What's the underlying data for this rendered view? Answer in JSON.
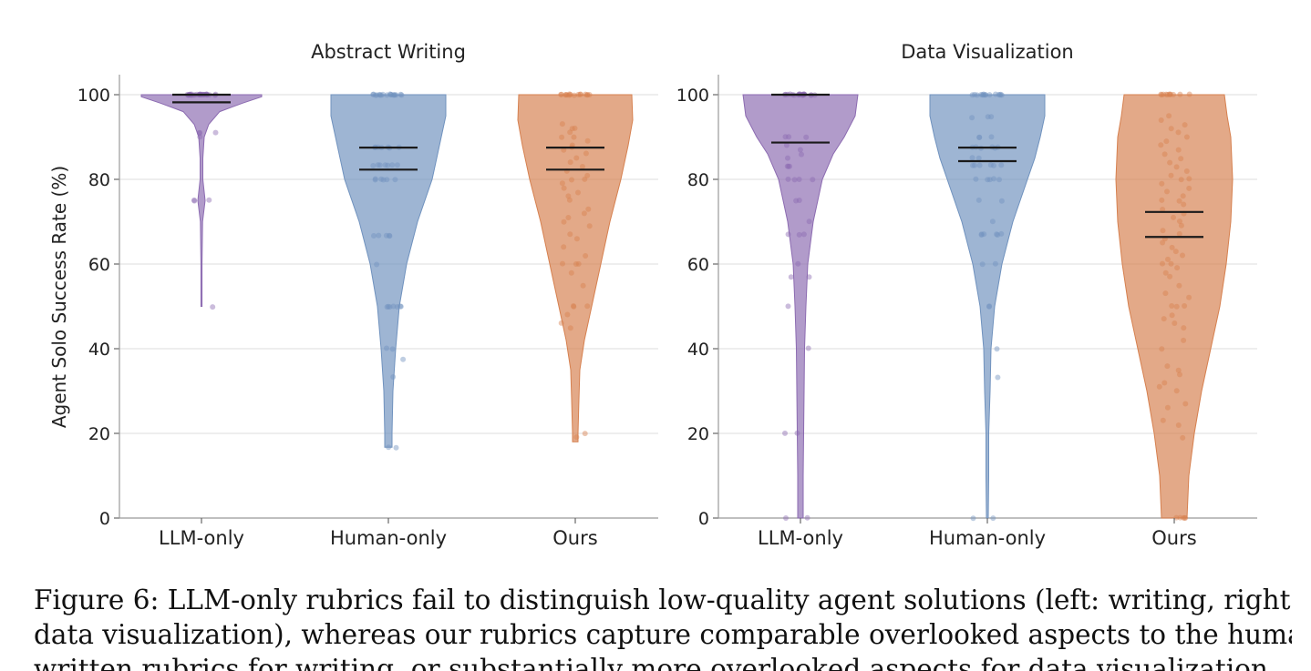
{
  "chart_data": [
    {
      "type": "violin",
      "title": "Abstract Writing",
      "ylabel": "Agent Solo Success Rate (%)",
      "xlabel": "",
      "ylim": [
        0,
        105
      ],
      "yticks": [
        0,
        20,
        40,
        60,
        80,
        100
      ],
      "grid": "horizontal",
      "categories": [
        "LLM-only",
        "Human-only",
        "Ours"
      ],
      "series": [
        {
          "category": "LLM-only",
          "color": "#8c6bb1",
          "range": [
            50,
            100
          ],
          "mean": 98.2,
          "median": 100,
          "profile": [
            [
              50,
              0.6
            ],
            [
              60,
              0.6
            ],
            [
              70,
              1.2
            ],
            [
              75,
              4
            ],
            [
              80,
              1.5
            ],
            [
              85,
              1.5
            ],
            [
              90,
              3
            ],
            [
              93,
              8
            ],
            [
              96,
              20
            ],
            [
              98,
              45
            ],
            [
              99.5,
              66
            ],
            [
              100,
              66
            ]
          ],
          "points": [
            100,
            100,
            100,
            100,
            100,
            100,
            100,
            100,
            100,
            100,
            100,
            100,
            100,
            100,
            100,
            100,
            100,
            100,
            100,
            100,
            100,
            100,
            100,
            100,
            100,
            100,
            100,
            100,
            100,
            100,
            91,
            91,
            91,
            90,
            75,
            75,
            75,
            50
          ]
        },
        {
          "category": "Human-only",
          "color": "#7092be",
          "range": [
            16.7,
            100
          ],
          "mean": 82.3,
          "median": 87.5,
          "profile": [
            [
              16.7,
              4
            ],
            [
              20,
              4
            ],
            [
              30,
              5
            ],
            [
              40,
              8
            ],
            [
              50,
              12
            ],
            [
              60,
              20
            ],
            [
              70,
              32
            ],
            [
              80,
              48
            ],
            [
              85,
              53
            ],
            [
              90,
              58
            ],
            [
              95,
              63
            ],
            [
              100,
              63
            ]
          ],
          "points": [
            100,
            100,
            100,
            100,
            100,
            100,
            100,
            100,
            100,
            100,
            100,
            100,
            100,
            100,
            100,
            100,
            100,
            100,
            87.5,
            87.5,
            87.5,
            87.5,
            87.5,
            87.5,
            87.5,
            83.3,
            83.3,
            83.3,
            83.3,
            83.3,
            83.3,
            83.3,
            80,
            80,
            80,
            80,
            80,
            80,
            66.7,
            66.7,
            66.7,
            66.7,
            66.7,
            60,
            50,
            50,
            50,
            50,
            50,
            50,
            50,
            40,
            40,
            37.5,
            33.3,
            16.7,
            16.7
          ]
        },
        {
          "category": "Ours",
          "color": "#d6804f",
          "range": [
            18,
            100
          ],
          "mean": 82.3,
          "median": 87.5,
          "profile": [
            [
              18,
              3
            ],
            [
              20,
              3
            ],
            [
              28,
              4
            ],
            [
              35,
              5
            ],
            [
              42,
              10
            ],
            [
              50,
              18
            ],
            [
              60,
              28
            ],
            [
              70,
              38
            ],
            [
              80,
              50
            ],
            [
              88,
              58
            ],
            [
              94,
              63
            ],
            [
              100,
              62
            ]
          ],
          "points": [
            100,
            100,
            100,
            100,
            100,
            100,
            100,
            100,
            100,
            100,
            100,
            100,
            100,
            100,
            100,
            100,
            93,
            92,
            92,
            91,
            90,
            90,
            89,
            88,
            87.5,
            87,
            86,
            85,
            84,
            83,
            82,
            81,
            80,
            80,
            79,
            78,
            77,
            76,
            75,
            73,
            72,
            71,
            70,
            69,
            67,
            66,
            64,
            62,
            60,
            60,
            60,
            58,
            55,
            50,
            50,
            50,
            48,
            46,
            45,
            20,
            19
          ]
        }
      ]
    },
    {
      "type": "violin",
      "title": "Data Visualization",
      "ylabel": "",
      "xlabel": "",
      "ylim": [
        0,
        105
      ],
      "yticks": [
        0,
        20,
        40,
        60,
        80,
        100
      ],
      "grid": "horizontal",
      "categories": [
        "LLM-only",
        "Human-only",
        "Ours"
      ],
      "series": [
        {
          "category": "LLM-only",
          "color": "#8c6bb1",
          "range": [
            0,
            100
          ],
          "mean": 88.7,
          "median": 100,
          "profile": [
            [
              0,
              3
            ],
            [
              10,
              3
            ],
            [
              20,
              3.5
            ],
            [
              30,
              4
            ],
            [
              40,
              4.5
            ],
            [
              50,
              6
            ],
            [
              60,
              8
            ],
            [
              70,
              14
            ],
            [
              80,
              24
            ],
            [
              86,
              36
            ],
            [
              90,
              48
            ],
            [
              95,
              60
            ],
            [
              100,
              63
            ]
          ],
          "points": [
            100,
            100,
            100,
            100,
            100,
            100,
            100,
            100,
            100,
            100,
            100,
            100,
            100,
            100,
            100,
            100,
            100,
            100,
            100,
            100,
            100,
            90,
            90,
            90,
            88,
            87,
            86,
            85,
            83,
            83,
            83,
            80,
            80,
            80,
            80,
            75,
            75,
            70,
            67,
            67,
            67,
            60,
            57,
            57,
            50,
            40,
            20,
            20,
            0,
            0
          ]
        },
        {
          "category": "Human-only",
          "color": "#7092be",
          "range": [
            0,
            100
          ],
          "mean": 84.3,
          "median": 87.5,
          "profile": [
            [
              0,
              1
            ],
            [
              10,
              1.5
            ],
            [
              20,
              1.5
            ],
            [
              30,
              3
            ],
            [
              40,
              4
            ],
            [
              50,
              8
            ],
            [
              60,
              16
            ],
            [
              70,
              28
            ],
            [
              80,
              44
            ],
            [
              85,
              52
            ],
            [
              90,
              58
            ],
            [
              95,
              63
            ],
            [
              100,
              63
            ]
          ],
          "points": [
            100,
            100,
            100,
            100,
            100,
            100,
            100,
            100,
            100,
            100,
            100,
            100,
            100,
            100,
            100,
            94.7,
            94.7,
            94.7,
            90,
            90,
            90,
            87.5,
            87.5,
            87.5,
            87.5,
            87.5,
            87.5,
            85,
            85,
            83.3,
            83.3,
            83.3,
            83.3,
            83.3,
            83.3,
            80,
            80,
            80,
            80,
            80,
            75,
            75,
            70,
            67,
            67,
            67,
            67,
            67,
            67,
            60,
            60,
            50,
            50,
            40,
            33.3,
            0,
            0
          ]
        },
        {
          "category": "Ours",
          "color": "#d6804f",
          "range": [
            0,
            100
          ],
          "mean": 66.4,
          "median": 72.3,
          "profile": [
            [
              0,
              14
            ],
            [
              10,
              16
            ],
            [
              20,
              22
            ],
            [
              30,
              30
            ],
            [
              40,
              40
            ],
            [
              50,
              50
            ],
            [
              60,
              57
            ],
            [
              70,
              62
            ],
            [
              80,
              64
            ],
            [
              90,
              62
            ],
            [
              95,
              58
            ],
            [
              100,
              55
            ]
          ],
          "points": [
            100,
            100,
            100,
            100,
            100,
            100,
            100,
            100,
            100,
            100,
            100,
            95,
            94,
            93,
            92,
            91,
            90,
            89,
            88,
            87,
            86,
            85,
            84,
            83,
            82,
            81,
            80,
            80,
            79,
            78,
            77,
            76,
            75,
            75,
            74,
            73,
            72,
            71,
            70,
            69,
            68,
            67,
            66,
            65,
            64,
            63,
            62,
            61,
            60,
            60,
            59,
            58,
            57,
            55,
            53,
            52,
            50,
            50,
            50,
            48,
            47,
            46,
            45,
            42,
            40,
            36,
            35,
            34,
            32,
            31,
            30,
            27,
            26,
            23,
            22,
            19,
            0,
            0,
            0,
            0,
            0
          ]
        }
      ]
    }
  ],
  "caption": {
    "line1": "Figure 6: LLM-only rubrics fail to distinguish low-quality agent solutions (left: writing, right:",
    "line2": "data visualization), whereas our rubrics capture comparable overlooked aspects to the human-",
    "line3": "written rubrics for writing, or substantially more overlooked aspects for data visualization."
  }
}
